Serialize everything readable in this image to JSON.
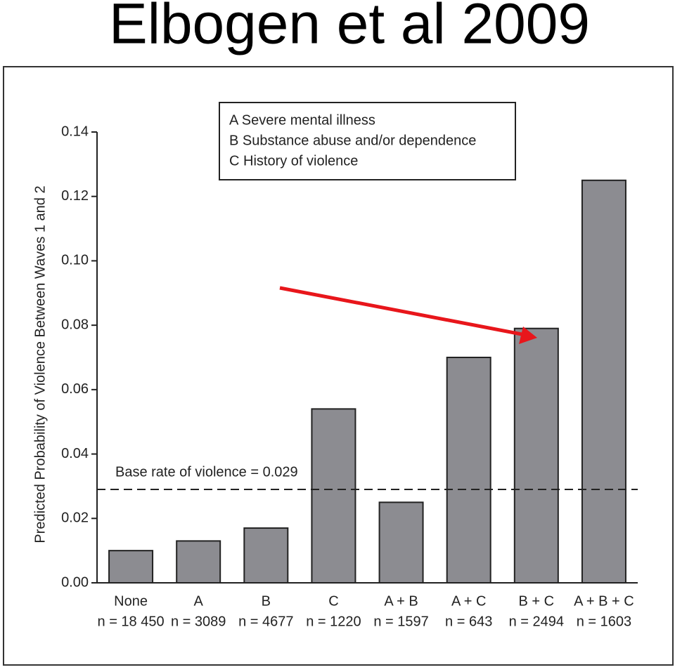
{
  "slide_title": "Elbogen et al 2009",
  "chart_data": {
    "type": "bar",
    "y_label": "Predicted Probability of Violence Between Waves 1 and 2",
    "categories": [
      "None",
      "A",
      "B",
      "C",
      "A + B",
      "A + C",
      "B + C",
      "A + B + C"
    ],
    "sample_sizes": [
      "n = 18 450",
      "n = 3089",
      "n = 4677",
      "n = 1220",
      "n = 1597",
      "n = 643",
      "n = 2494",
      "n = 1603"
    ],
    "values": [
      0.01,
      0.013,
      0.017,
      0.054,
      0.025,
      0.07,
      0.079,
      0.125
    ],
    "color": "#8c8c91",
    "ylim": [
      0,
      0.14
    ],
    "yticks": [
      {
        "value": 0,
        "label": "0.00"
      },
      {
        "value": 0.02,
        "label": "0.02"
      },
      {
        "value": 0.04,
        "label": "0.04"
      },
      {
        "value": 0.06,
        "label": "0.06"
      },
      {
        "value": 0.08,
        "label": "0.08"
      },
      {
        "value": 0.1,
        "label": "0.10"
      },
      {
        "value": 0.12,
        "label": "0.12"
      },
      {
        "value": 0.14,
        "label": "0.14"
      }
    ],
    "baseline": 0.029,
    "baseline_label": "Base rate of violence = 0.029",
    "legend_notes": [
      "A  Severe mental illness",
      "B  Substance abuse and/or dependence",
      "C  History of violence"
    ]
  }
}
